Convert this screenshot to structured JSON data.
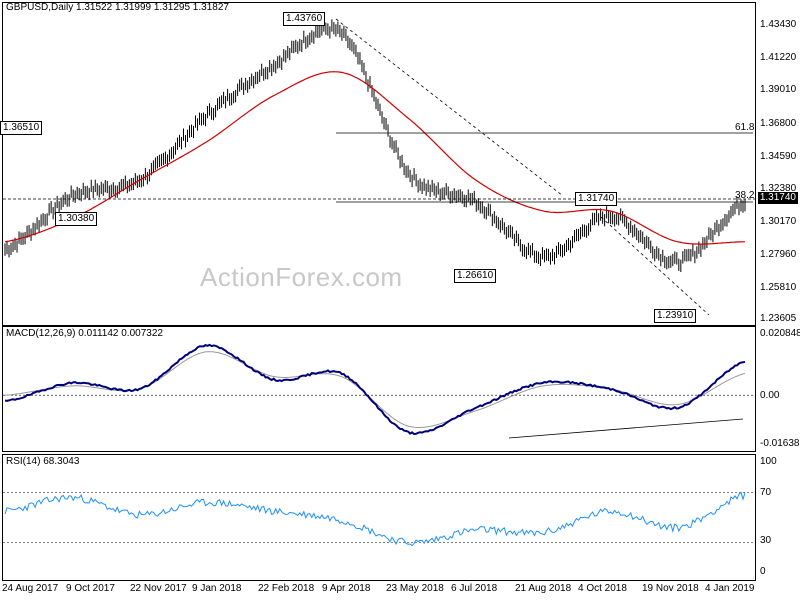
{
  "main": {
    "title": "GBPUSD,Daily  1.31522 1.31999 1.31295 1.31827",
    "y_ticks": [
      "1.43430",
      "1.41220",
      "1.39010",
      "1.36800",
      "1.34590",
      "1.32380",
      "1.30170",
      "1.27960",
      "1.25810",
      "1.23605"
    ],
    "current_price": "1.31740",
    "fib_label_618": "61.8",
    "fib_label_382": "38.2",
    "callouts": [
      "1.43760",
      "1.36510",
      "1.30380",
      "1.26610",
      "1.31740",
      "1.23910"
    ],
    "watermark": "ActionForex.com"
  },
  "macd": {
    "title": "MACD(12,26,9) 0.011142 0.007322",
    "y_ticks": [
      "0.020848",
      "0.00",
      "-0.016389"
    ]
  },
  "rsi": {
    "title": "RSI(14) 68.3043",
    "y_ticks": [
      "100",
      "70",
      "30",
      "0"
    ]
  },
  "x_axis": {
    "dates": [
      "24 Aug 2017",
      "9 Oct 2017",
      "22 Nov 2017",
      "9 Jan 2018",
      "22 Feb 2018",
      "9 Apr 2018",
      "23 May 2018",
      "6 Jul 2018",
      "21 Aug 2018",
      "4 Oct 2018",
      "19 Nov 2018",
      "4 Jan 2019"
    ]
  },
  "colors": {
    "price_bars": "#000000",
    "ma_line": "#d00000",
    "macd_line": "#00007a",
    "signal_line": "#999999",
    "rsi_line": "#1e90ff"
  },
  "chart_data": [
    {
      "type": "line",
      "title": "GBPUSD,Daily  1.31522 1.31999 1.31295 1.31827",
      "x": [
        "24 Aug 2017",
        "9 Oct 2017",
        "22 Nov 2017",
        "9 Jan 2018",
        "22 Feb 2018",
        "9 Apr 2018",
        "23 May 2018",
        "6 Jul 2018",
        "21 Aug 2018",
        "4 Oct 2018",
        "19 Nov 2018",
        "4 Jan 2019"
      ],
      "series": [
        {
          "values": [
            1.285,
            1.32,
            1.33,
            1.372,
            1.405,
            1.425,
            1.335,
            1.316,
            1.28,
            1.307,
            1.277,
            1.316
          ]
        },
        {
          "values": [
            1.29,
            1.305,
            1.33,
            1.355,
            1.385,
            1.4,
            1.37,
            1.33,
            1.31,
            1.31,
            1.29,
            1.29
          ]
        }
      ],
      "ylim": [
        1.236,
        1.445
      ],
      "annotations": [
        "1.43760",
        "1.36510",
        "1.30380",
        "1.26610",
        "1.31740",
        "1.23910",
        "61.8",
        "38.2"
      ]
    },
    {
      "type": "line",
      "title": "MACD(12,26,9) 0.011142 0.007322",
      "x": [
        "24 Aug 2017",
        "9 Oct 2017",
        "22 Nov 2017",
        "9 Jan 2018",
        "22 Feb 2018",
        "9 Apr 2018",
        "23 May 2018",
        "6 Jul 2018",
        "21 Aug 2018",
        "4 Oct 2018",
        "19 Nov 2018",
        "4 Jan 2019"
      ],
      "series": [
        {
          "values": [
            -0.002,
            0.004,
            0.002,
            0.016,
            0.005,
            0.007,
            -0.012,
            -0.004,
            0.004,
            0.002,
            -0.004,
            0.011
          ]
        },
        {
          "values": [
            0.0,
            0.003,
            0.002,
            0.014,
            0.006,
            0.006,
            -0.01,
            -0.005,
            0.003,
            0.002,
            -0.003,
            0.007
          ]
        }
      ],
      "ylim": [
        -0.018,
        0.022
      ]
    },
    {
      "type": "line",
      "title": "RSI(14) 68.3043",
      "x": [
        "24 Aug 2017",
        "9 Oct 2017",
        "22 Nov 2017",
        "9 Jan 2018",
        "22 Feb 2018",
        "9 Apr 2018",
        "23 May 2018",
        "6 Jul 2018",
        "21 Aug 2018",
        "4 Oct 2018",
        "19 Nov 2018",
        "4 Jan 2019"
      ],
      "series": [
        {
          "values": [
            55,
            66,
            52,
            62,
            55,
            48,
            30,
            40,
            38,
            55,
            42,
            68
          ]
        }
      ],
      "ylim": [
        0,
        100
      ]
    }
  ]
}
